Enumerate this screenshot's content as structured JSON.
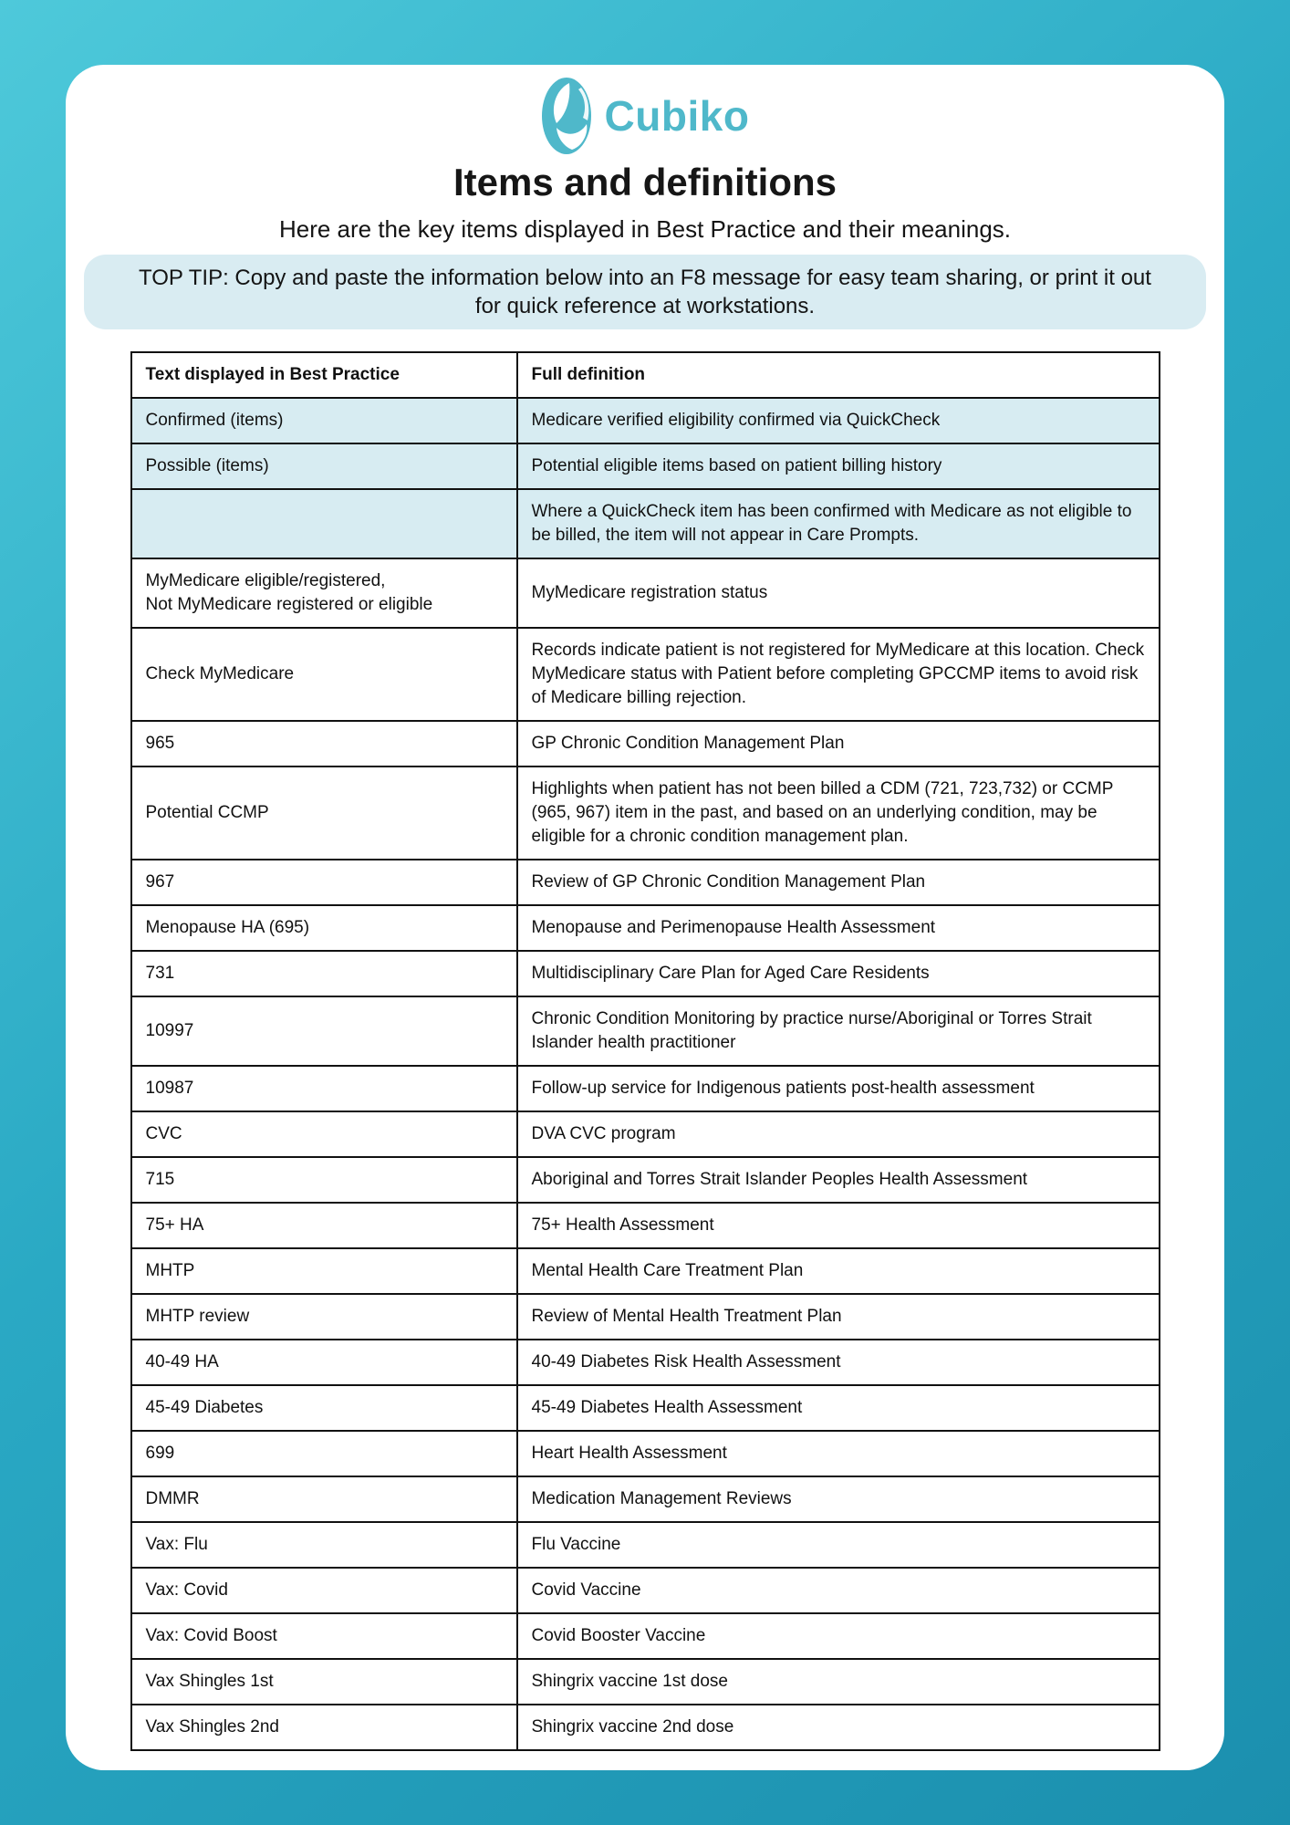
{
  "header": {
    "logo_text": "Cubiko",
    "title": "Items and definitions",
    "subtitle": "Here are the key items displayed in Best Practice and their meanings.",
    "tip": "TOP TIP: Copy and paste the information below into an F8 message for easy team sharing, or print it out for quick reference at workstations."
  },
  "colors": {
    "brand_teal": "#4fb8ca",
    "background_top": "#4ec9da",
    "background_bottom": "#1b8fae",
    "highlight_row": "#d7ecf2",
    "tip_background": "#d9ecf2",
    "table_border": "#111111"
  },
  "table": {
    "headers": [
      "Text displayed in Best Practice",
      "Full definition"
    ],
    "rows": [
      {
        "term": "Confirmed (items)",
        "definition": "Medicare verified eligibility confirmed via QuickCheck",
        "highlight": true
      },
      {
        "term": "Possible (items)",
        "definition": "Potential eligible items based on patient billing history",
        "highlight": true
      },
      {
        "term": "",
        "definition": "Where a QuickCheck item has been confirmed with Medicare as not eligible to be billed, the item will not appear in Care Prompts.",
        "highlight": true
      },
      {
        "term": "MyMedicare eligible/registered,\nNot MyMedicare registered or eligible",
        "definition": "MyMedicare registration status",
        "highlight": false
      },
      {
        "term": "Check MyMedicare",
        "definition": "Records indicate patient is not registered for MyMedicare at this location. Check MyMedicare status with Patient before completing GPCCMP items to avoid risk of Medicare billing rejection.",
        "highlight": false
      },
      {
        "term": "965",
        "definition": "GP Chronic Condition Management Plan",
        "highlight": false
      },
      {
        "term": "Potential CCMP",
        "definition": "Highlights when patient has not been billed a CDM (721, 723,732) or CCMP (965, 967) item in the past, and based on an underlying condition, may be eligible for a chronic condition management plan.",
        "highlight": false
      },
      {
        "term": "967",
        "definition": "Review of GP Chronic Condition Management Plan",
        "highlight": false
      },
      {
        "term": "Menopause HA (695)",
        "definition": "Menopause and Perimenopause Health Assessment",
        "highlight": false
      },
      {
        "term": "731",
        "definition": "Multidisciplinary Care Plan for Aged Care Residents",
        "highlight": false
      },
      {
        "term": "10997",
        "definition": "Chronic Condition Monitoring by practice nurse/Aboriginal or Torres Strait Islander health practitioner",
        "highlight": false
      },
      {
        "term": "10987",
        "definition": "Follow-up service for Indigenous patients post-health assessment",
        "highlight": false
      },
      {
        "term": "CVC",
        "definition": "DVA CVC program",
        "highlight": false
      },
      {
        "term": "715",
        "definition": "Aboriginal and Torres Strait Islander Peoples Health Assessment",
        "highlight": false
      },
      {
        "term": "75+ HA",
        "definition": "75+ Health Assessment",
        "highlight": false
      },
      {
        "term": "MHTP",
        "definition": "Mental Health Care Treatment Plan",
        "highlight": false
      },
      {
        "term": "MHTP review",
        "definition": "Review of Mental Health Treatment Plan",
        "highlight": false
      },
      {
        "term": "40-49 HA",
        "definition": "40-49 Diabetes Risk Health Assessment",
        "highlight": false
      },
      {
        "term": "45-49 Diabetes",
        "definition": "45-49 Diabetes Health Assessment",
        "highlight": false
      },
      {
        "term": "699",
        "definition": "Heart Health Assessment",
        "highlight": false
      },
      {
        "term": "DMMR",
        "definition": "Medication Management Reviews",
        "highlight": false
      },
      {
        "term": "Vax: Flu",
        "definition": "Flu Vaccine",
        "highlight": false
      },
      {
        "term": "Vax: Covid",
        "definition": "Covid Vaccine",
        "highlight": false
      },
      {
        "term": "Vax: Covid Boost",
        "definition": "Covid Booster Vaccine",
        "highlight": false
      },
      {
        "term": "Vax Shingles 1st",
        "definition": "Shingrix vaccine 1st dose",
        "highlight": false
      },
      {
        "term": "Vax Shingles 2nd",
        "definition": "Shingrix vaccine 2nd dose",
        "highlight": false
      }
    ]
  }
}
